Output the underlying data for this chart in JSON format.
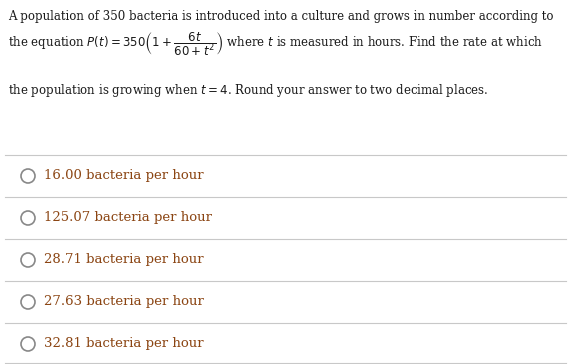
{
  "background_color": "#ffffff",
  "text_color": "#1a1a1a",
  "choice_text_color": "#8B4513",
  "line_color": "#c8c8c8",
  "question_line1": "A population of 350 bacteria is introduced into a culture and grows in number according to",
  "equation_text": "the equation $P(t) = 350\\left(1 + \\dfrac{6t}{60+t^2}\\right)$ where $t$ is measured in hours. Find the rate at which",
  "question_line3": "the population is growing when $t = 4$. Round your answer to two decimal places.",
  "choices": [
    "16.00 bacteria per hour",
    "125.07 bacteria per hour",
    "28.71 bacteria per hour",
    "27.63 bacteria per hour",
    "32.81 bacteria per hour"
  ],
  "figsize": [
    5.71,
    3.64
  ],
  "dpi": 100,
  "font_size_question": 8.5,
  "font_size_choices": 9.5,
  "circle_color": "#888888"
}
